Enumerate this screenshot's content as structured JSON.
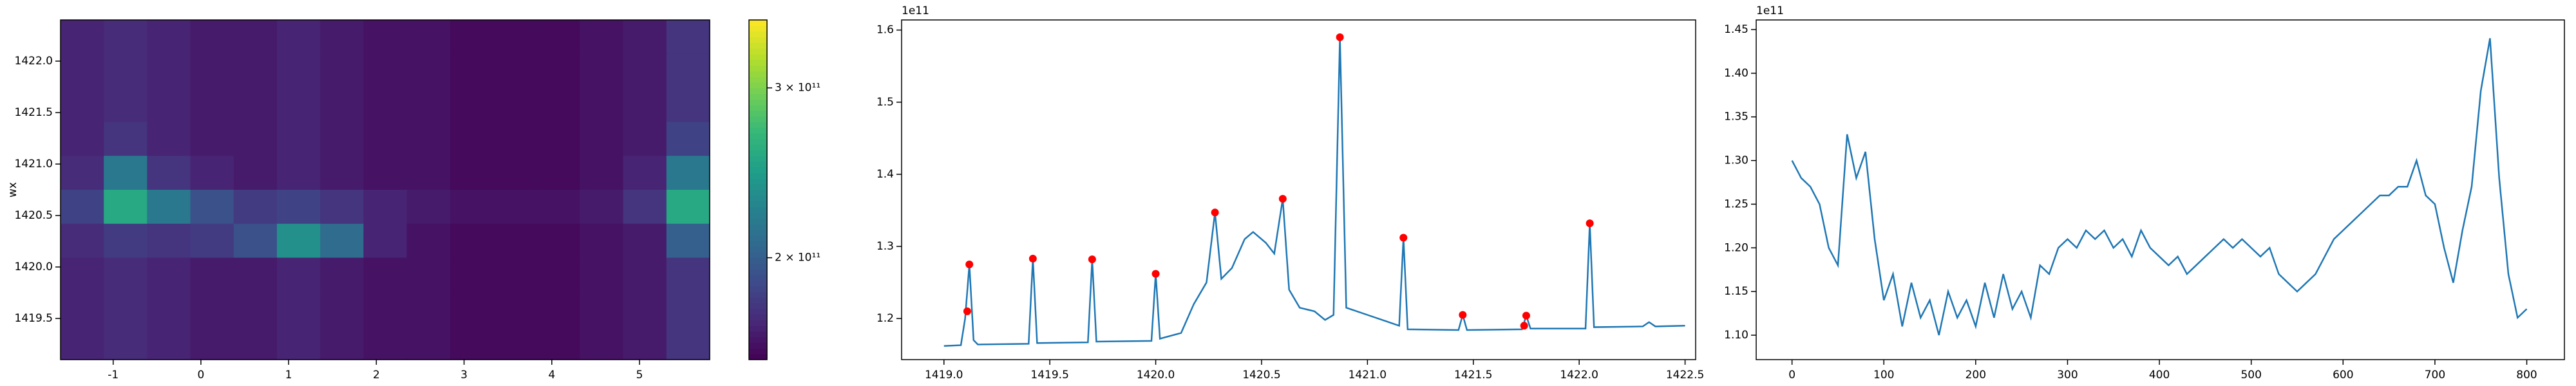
{
  "chart_data": [
    {
      "type": "heatmap",
      "ylabel": "wx",
      "colormap": "viridis",
      "xlim": [
        -1.6,
        5.8
      ],
      "ylim": [
        1419.1,
        1422.4
      ],
      "xticks": [
        -1,
        0,
        1,
        2,
        3,
        4,
        5
      ],
      "yticks": [
        1419.5,
        {
          "value": 1420.0,
          "label": "1420.0"
        },
        1420.5,
        {
          "value": 1421.0,
          "label": "1421.0"
        },
        1421.5,
        {
          "value": 1422.0,
          "label": "1422.0"
        }
      ],
      "clim": [
        140000000000.0,
        340000000000.0
      ],
      "cticks": [
        {
          "value": 200000000000.0,
          "label": "2 × 10¹¹"
        },
        {
          "value": 300000000000.0,
          "label": "3 × 10¹¹"
        }
      ],
      "z": [
        [
          160000000000.0,
          165000000000.0,
          160000000000.0,
          155000000000.0,
          155000000000.0,
          160000000000.0,
          155000000000.0,
          150000000000.0,
          150000000000.0,
          145000000000.0,
          145000000000.0,
          145000000000.0,
          150000000000.0,
          155000000000.0,
          170000000000.0
        ],
        [
          160000000000.0,
          165000000000.0,
          160000000000.0,
          155000000000.0,
          155000000000.0,
          160000000000.0,
          155000000000.0,
          150000000000.0,
          150000000000.0,
          145000000000.0,
          145000000000.0,
          145000000000.0,
          150000000000.0,
          155000000000.0,
          170000000000.0
        ],
        [
          160000000000.0,
          165000000000.0,
          160000000000.0,
          155000000000.0,
          155000000000.0,
          160000000000.0,
          155000000000.0,
          150000000000.0,
          150000000000.0,
          145000000000.0,
          145000000000.0,
          145000000000.0,
          150000000000.0,
          155000000000.0,
          170000000000.0
        ],
        [
          160000000000.0,
          170000000000.0,
          160000000000.0,
          155000000000.0,
          155000000000.0,
          160000000000.0,
          155000000000.0,
          150000000000.0,
          150000000000.0,
          145000000000.0,
          145000000000.0,
          145000000000.0,
          150000000000.0,
          155000000000.0,
          180000000000.0
        ],
        [
          165000000000.0,
          220000000000.0,
          170000000000.0,
          160000000000.0,
          155000000000.0,
          160000000000.0,
          155000000000.0,
          150000000000.0,
          150000000000.0,
          145000000000.0,
          145000000000.0,
          145000000000.0,
          150000000000.0,
          160000000000.0,
          220000000000.0
        ],
        [
          180000000000.0,
          260000000000.0,
          220000000000.0,
          190000000000.0,
          175000000000.0,
          180000000000.0,
          170000000000.0,
          160000000000.0,
          155000000000.0,
          150000000000.0,
          150000000000.0,
          150000000000.0,
          155000000000.0,
          170000000000.0,
          260000000000.0
        ],
        [
          165000000000.0,
          175000000000.0,
          170000000000.0,
          175000000000.0,
          190000000000.0,
          240000000000.0,
          210000000000.0,
          160000000000.0,
          150000000000.0,
          145000000000.0,
          145000000000.0,
          145000000000.0,
          150000000000.0,
          155000000000.0,
          200000000000.0
        ],
        [
          160000000000.0,
          165000000000.0,
          160000000000.0,
          155000000000.0,
          155000000000.0,
          160000000000.0,
          155000000000.0,
          150000000000.0,
          150000000000.0,
          145000000000.0,
          145000000000.0,
          145000000000.0,
          150000000000.0,
          155000000000.0,
          170000000000.0
        ],
        [
          160000000000.0,
          165000000000.0,
          160000000000.0,
          155000000000.0,
          155000000000.0,
          160000000000.0,
          155000000000.0,
          150000000000.0,
          150000000000.0,
          145000000000.0,
          145000000000.0,
          145000000000.0,
          150000000000.0,
          155000000000.0,
          170000000000.0
        ],
        [
          160000000000.0,
          165000000000.0,
          160000000000.0,
          155000000000.0,
          155000000000.0,
          160000000000.0,
          155000000000.0,
          150000000000.0,
          150000000000.0,
          145000000000.0,
          145000000000.0,
          145000000000.0,
          150000000000.0,
          155000000000.0,
          170000000000.0
        ]
      ]
    },
    {
      "type": "line",
      "offset_text": "1e11",
      "xlim": [
        1418.8,
        1422.55
      ],
      "ylim": [
        1.143,
        1.614
      ],
      "xticks": [
        {
          "value": 1419.0,
          "label": "1419.0"
        },
        1419.5,
        {
          "value": 1420.0,
          "label": "1420.0"
        },
        1420.5,
        {
          "value": 1421.0,
          "label": "1421.0"
        },
        1421.5,
        {
          "value": 1422.0,
          "label": "1422.0"
        },
        1422.5
      ],
      "yticks": [
        1.2,
        1.3,
        1.4,
        1.5,
        1.6
      ],
      "series": [
        {
          "color": "#1f77b4",
          "x": [
            1419.0,
            1419.08,
            1419.1,
            1419.12,
            1419.14,
            1419.16,
            1419.4,
            1419.42,
            1419.44,
            1419.68,
            1419.7,
            1419.72,
            1419.98,
            1420.0,
            1420.02,
            1420.12,
            1420.18,
            1420.24,
            1420.28,
            1420.31,
            1420.36,
            1420.42,
            1420.46,
            1420.52,
            1420.56,
            1420.6,
            1420.63,
            1420.68,
            1420.75,
            1420.8,
            1420.84,
            1420.87,
            1420.9,
            1421.0,
            1421.1,
            1421.15,
            1421.17,
            1421.19,
            1421.43,
            1421.45,
            1421.47,
            1421.73,
            1421.75,
            1421.77,
            1422.03,
            1422.05,
            1422.07,
            1422.3,
            1422.33,
            1422.36,
            1422.5
          ],
          "values": [
            1.162,
            1.163,
            1.2,
            1.275,
            1.17,
            1.164,
            1.165,
            1.283,
            1.166,
            1.167,
            1.282,
            1.168,
            1.169,
            1.262,
            1.172,
            1.18,
            1.22,
            1.25,
            1.347,
            1.255,
            1.27,
            1.31,
            1.32,
            1.305,
            1.29,
            1.366,
            1.24,
            1.215,
            1.21,
            1.198,
            1.205,
            1.59,
            1.215,
            1.205,
            1.195,
            1.19,
            1.312,
            1.185,
            1.184,
            1.205,
            1.184,
            1.185,
            1.204,
            1.186,
            1.186,
            1.332,
            1.188,
            1.189,
            1.195,
            1.189,
            1.19
          ]
        },
        {
          "color": "#ff0000",
          "marker": "dot",
          "x": [
            1419.11,
            1419.12,
            1419.42,
            1419.7,
            1420.0,
            1420.28,
            1420.6,
            1420.87,
            1421.17,
            1421.45,
            1421.74,
            1421.75,
            1422.05
          ],
          "values": [
            1.21,
            1.275,
            1.283,
            1.282,
            1.262,
            1.347,
            1.366,
            1.59,
            1.312,
            1.205,
            1.19,
            1.204,
            1.332
          ]
        }
      ]
    },
    {
      "type": "line",
      "offset_text": "1e11",
      "xlim": [
        -39,
        841
      ],
      "ylim": [
        1.072,
        1.461
      ],
      "xticks": [
        0,
        100,
        200,
        300,
        400,
        500,
        600,
        700,
        800
      ],
      "yticks": [
        {
          "value": 1.1,
          "label": "1.10"
        },
        1.15,
        {
          "value": 1.2,
          "label": "1.20"
        },
        1.25,
        {
          "value": 1.3,
          "label": "1.30"
        },
        1.35,
        {
          "value": 1.4,
          "label": "1.40"
        },
        1.45
      ],
      "series": [
        {
          "color": "#1f77b4",
          "x": [
            0,
            10,
            20,
            30,
            40,
            50,
            60,
            70,
            80,
            90,
            100,
            110,
            120,
            130,
            140,
            150,
            160,
            170,
            180,
            190,
            200,
            210,
            220,
            230,
            240,
            250,
            260,
            270,
            280,
            290,
            300,
            310,
            320,
            330,
            340,
            350,
            360,
            370,
            380,
            390,
            400,
            410,
            420,
            430,
            440,
            450,
            460,
            470,
            480,
            490,
            500,
            510,
            520,
            530,
            540,
            550,
            560,
            570,
            580,
            590,
            600,
            610,
            620,
            630,
            640,
            650,
            660,
            670,
            680,
            690,
            700,
            710,
            720,
            730,
            740,
            750,
            760,
            770,
            780,
            790,
            800
          ],
          "values": [
            1.3,
            1.28,
            1.27,
            1.25,
            1.2,
            1.18,
            1.33,
            1.28,
            1.31,
            1.21,
            1.14,
            1.17,
            1.11,
            1.16,
            1.12,
            1.14,
            1.1,
            1.15,
            1.12,
            1.14,
            1.11,
            1.16,
            1.12,
            1.17,
            1.13,
            1.15,
            1.12,
            1.18,
            1.17,
            1.2,
            1.21,
            1.2,
            1.22,
            1.21,
            1.22,
            1.2,
            1.21,
            1.19,
            1.22,
            1.2,
            1.19,
            1.18,
            1.19,
            1.17,
            1.18,
            1.19,
            1.2,
            1.21,
            1.2,
            1.21,
            1.2,
            1.19,
            1.2,
            1.17,
            1.16,
            1.15,
            1.16,
            1.17,
            1.19,
            1.21,
            1.22,
            1.23,
            1.24,
            1.25,
            1.26,
            1.26,
            1.27,
            1.27,
            1.3,
            1.26,
            1.25,
            1.2,
            1.16,
            1.22,
            1.27,
            1.38,
            1.44,
            1.28,
            1.17,
            1.12,
            1.13
          ]
        }
      ]
    }
  ]
}
